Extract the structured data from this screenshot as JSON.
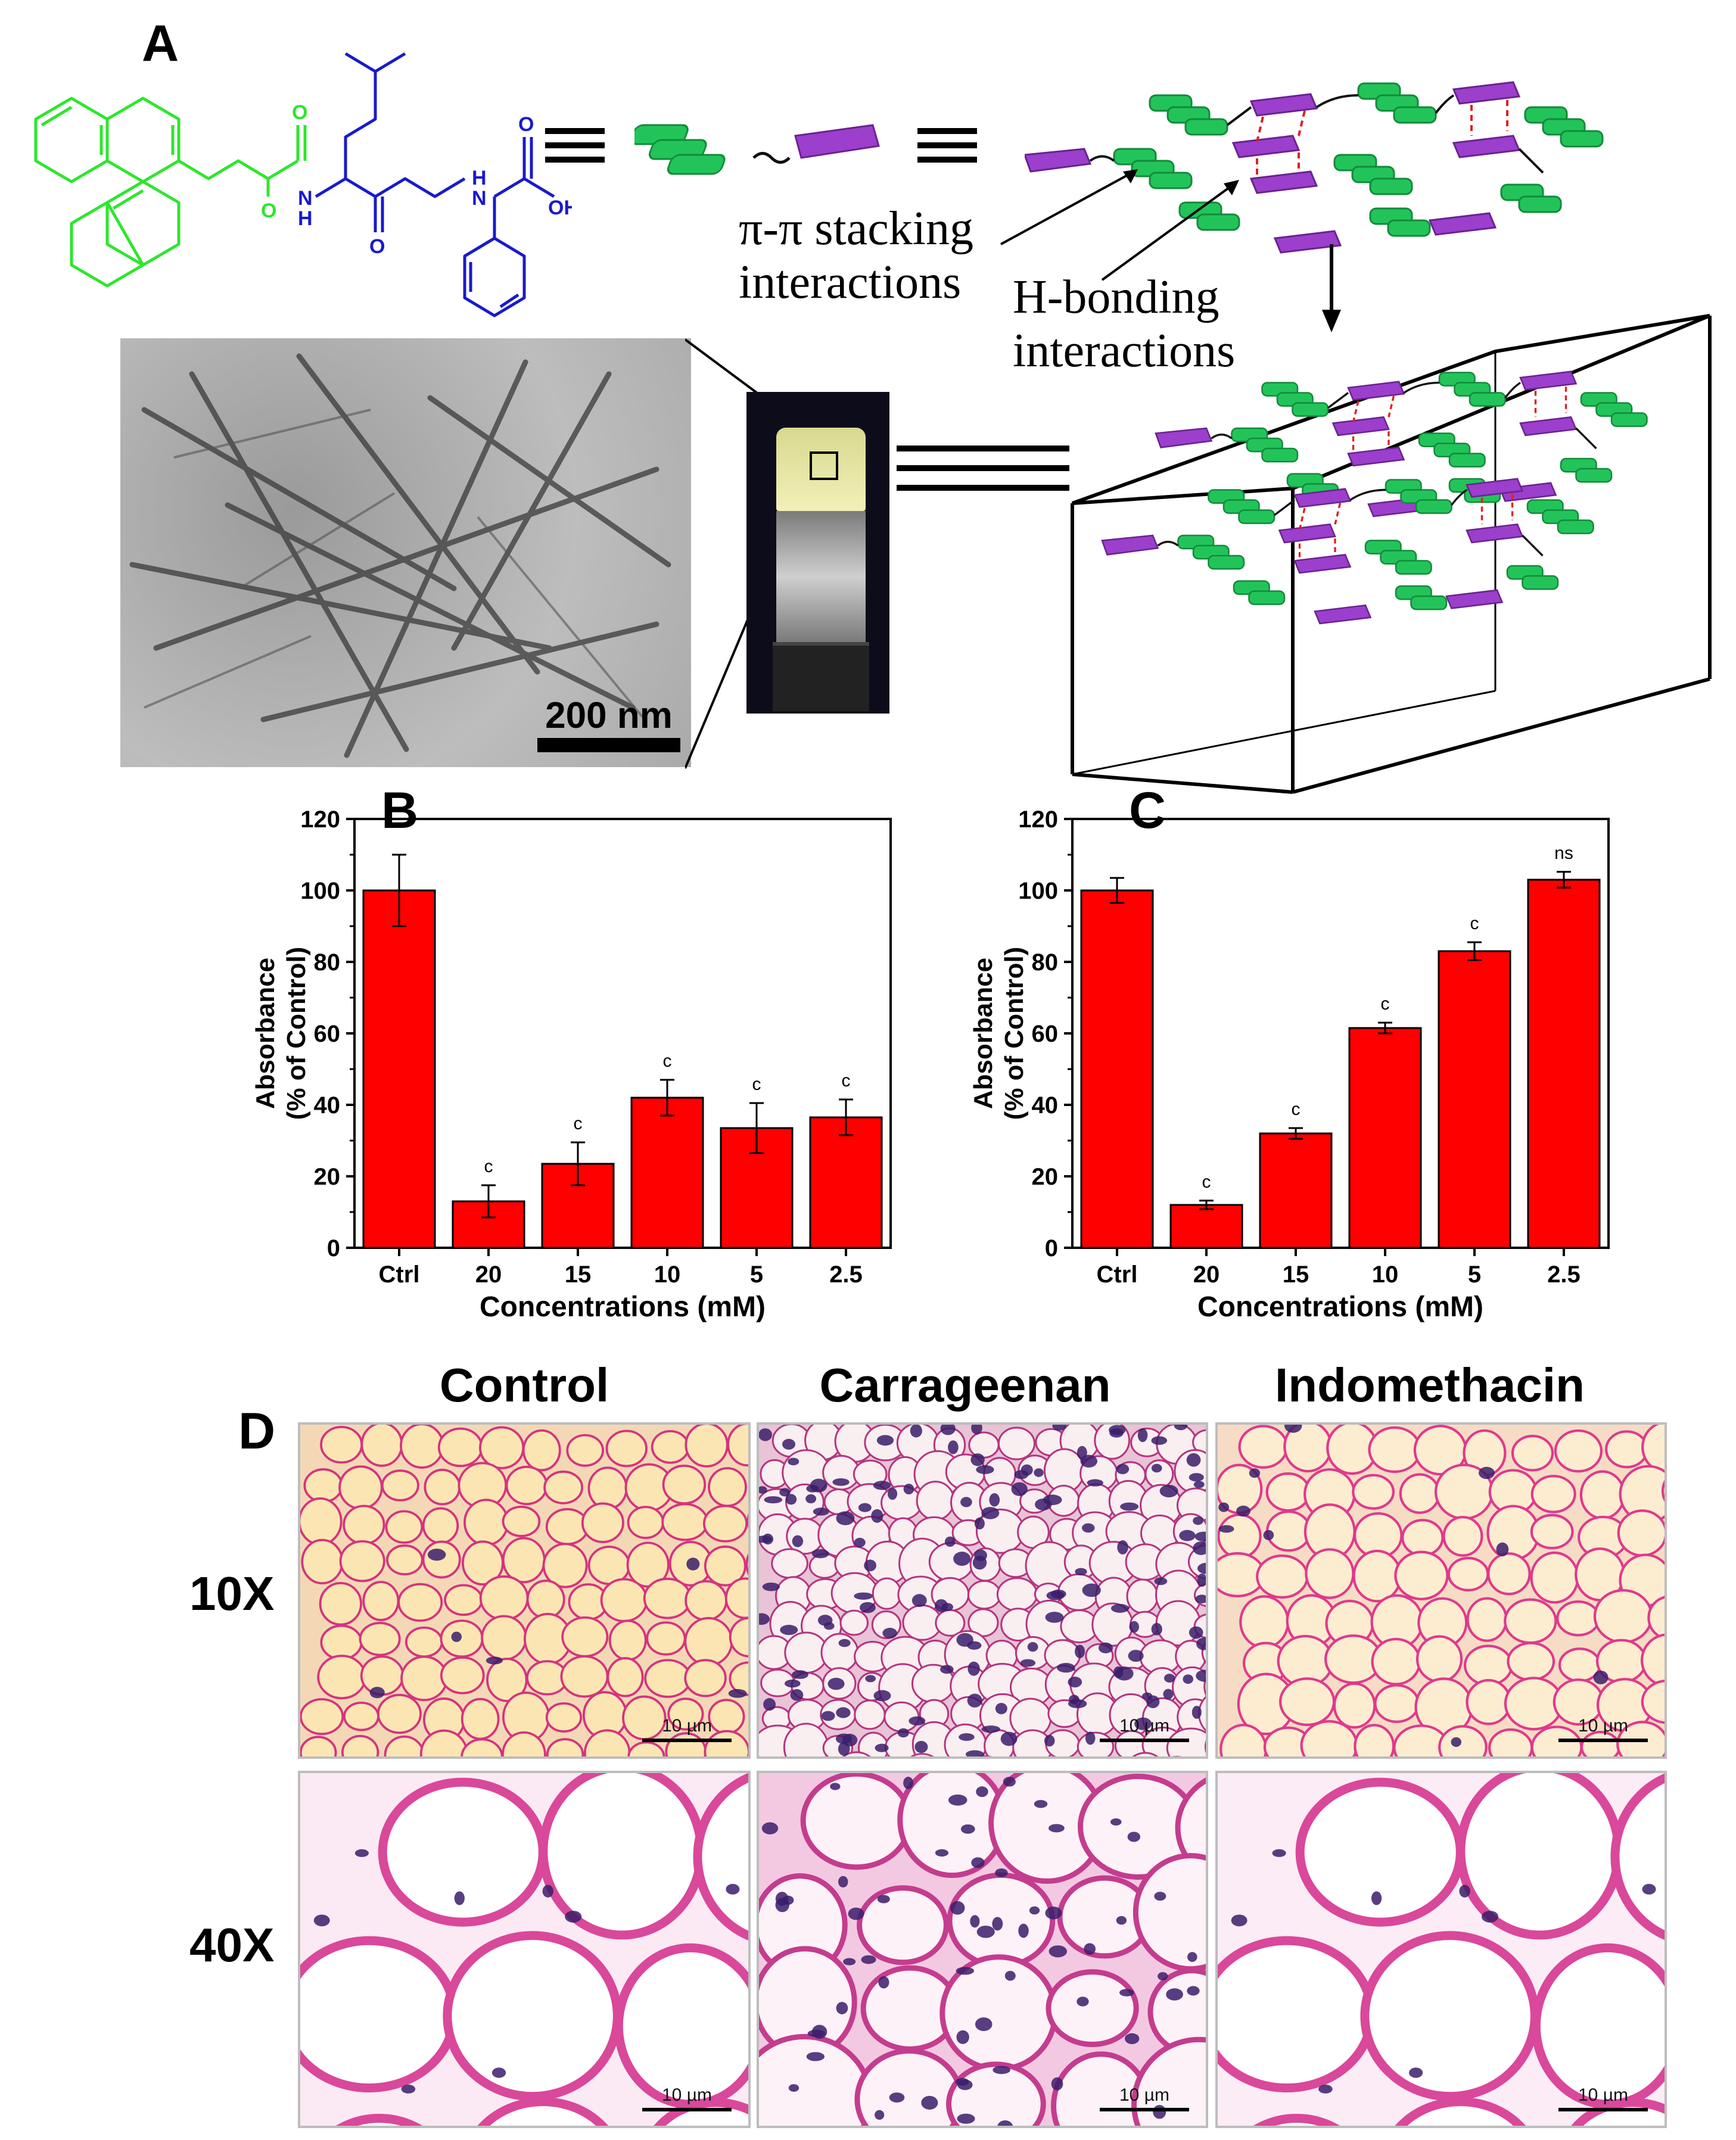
{
  "panel_a": {
    "letter": "A",
    "pi_label_line1": "π-π stacking",
    "pi_label_line2": "interactions",
    "hb_label_line1": "H-bonding",
    "hb_label_line2": "interactions",
    "scale_bar": "200 nm",
    "molecule_labels": {
      "o1": "O",
      "o2": "O",
      "o3": "O",
      "o4": "O",
      "oh": "OH",
      "nh1": "N",
      "nh1h": "H",
      "nh2": "N",
      "nh2h": "H"
    },
    "colors": {
      "fluorenyl": "#2ee62e",
      "peptide": "#1a1acc",
      "green_block": "#22c45a",
      "purple_block": "#9b3fcc",
      "hbond": "#e02020"
    }
  },
  "chart_data": [
    {
      "panel": "B",
      "type": "bar",
      "categories": [
        "Ctrl",
        "20",
        "15",
        "10",
        "5",
        "2.5"
      ],
      "values": [
        100,
        13,
        23.5,
        42,
        33.5,
        36.5
      ],
      "errors": [
        10,
        4.5,
        6,
        5,
        7,
        5
      ],
      "annotations": [
        "",
        "c",
        "c",
        "c",
        "c",
        "c"
      ],
      "xlabel": "Concentrations (mM)",
      "ylabel_line1": "Absorbance",
      "ylabel_line2": "(% of Control)",
      "ylim": [
        0,
        120
      ],
      "yticks": [
        "0",
        "20",
        "40",
        "60",
        "80",
        "100",
        "120"
      ],
      "bar_color": "#ff0000"
    },
    {
      "panel": "C",
      "type": "bar",
      "categories": [
        "Ctrl",
        "20",
        "15",
        "10",
        "5",
        "2.5"
      ],
      "values": [
        100,
        12,
        32,
        61.5,
        83,
        103
      ],
      "errors": [
        3.5,
        1.2,
        1.5,
        1.5,
        2.5,
        2.2
      ],
      "annotations": [
        "",
        "c",
        "c",
        "c",
        "c",
        "ns"
      ],
      "xlabel": "Concentrations (mM)",
      "ylabel_line1": "Absorbance",
      "ylabel_line2": "(% of Control)",
      "ylim": [
        0,
        120
      ],
      "yticks": [
        "0",
        "20",
        "40",
        "60",
        "80",
        "100",
        "120"
      ],
      "bar_color": "#ff0000"
    }
  ],
  "panel_d": {
    "letter": "D",
    "columns": [
      "Control",
      "Carrageenan",
      "Indomethacin"
    ],
    "rows": [
      "10X",
      "40X"
    ],
    "scale_label": "10 µm"
  }
}
